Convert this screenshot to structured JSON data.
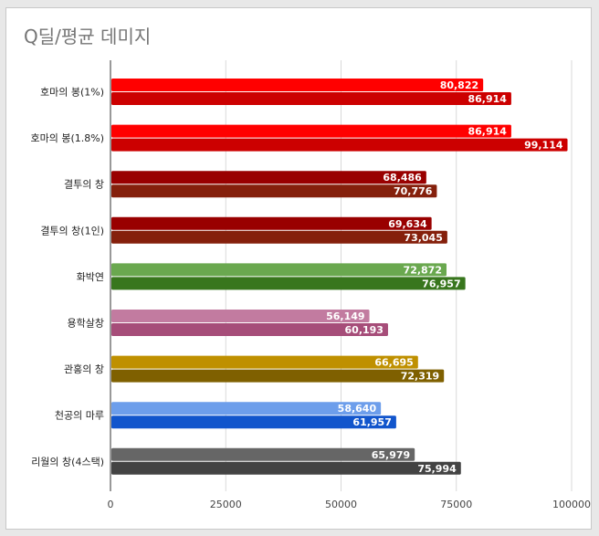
{
  "chart_data": {
    "type": "bar",
    "orientation": "horizontal",
    "title": "Q딜/평균 데미지",
    "xlabel": "",
    "ylabel": "",
    "xlim": [
      0,
      100000
    ],
    "x_ticks": [
      "0",
      "25000",
      "50000",
      "75000",
      "100000"
    ],
    "x_tick_values": [
      0,
      25000,
      50000,
      75000,
      100000
    ],
    "grid": true,
    "legend": "none",
    "categories": [
      "호마의 봉(1%)",
      "호마의 봉(1.8%)",
      "결투의 창",
      "결투의 창(1인)",
      "화박연",
      "용학살창",
      "관홍의 창",
      "천공의 마루",
      "리월의 창(4스택)"
    ],
    "series": [
      {
        "values": [
          80822,
          86914,
          68486,
          69634,
          72872,
          56149,
          66695,
          58640,
          65979
        ],
        "labels": [
          "80,822",
          "86,914",
          "68,486",
          "69,634",
          "72,872",
          "56,149",
          "66,695",
          "58,640",
          "65,979"
        ],
        "colors": [
          "#ff0000",
          "#ff0000",
          "#990000",
          "#990000",
          "#6aa84f",
          "#c27ba0",
          "#bf9000",
          "#6d9eeb",
          "#666666"
        ]
      },
      {
        "values": [
          86914,
          99114,
          70776,
          73045,
          76957,
          60193,
          72319,
          61957,
          75994
        ],
        "labels": [
          "86,914",
          "99,114",
          "70,776",
          "73,045",
          "76,957",
          "60,193",
          "72,319",
          "61,957",
          "75,994"
        ],
        "colors": [
          "#cc0000",
          "#cc0000",
          "#85200c",
          "#85200c",
          "#38761d",
          "#a64d79",
          "#7f6000",
          "#1155cc",
          "#434343"
        ]
      }
    ]
  }
}
